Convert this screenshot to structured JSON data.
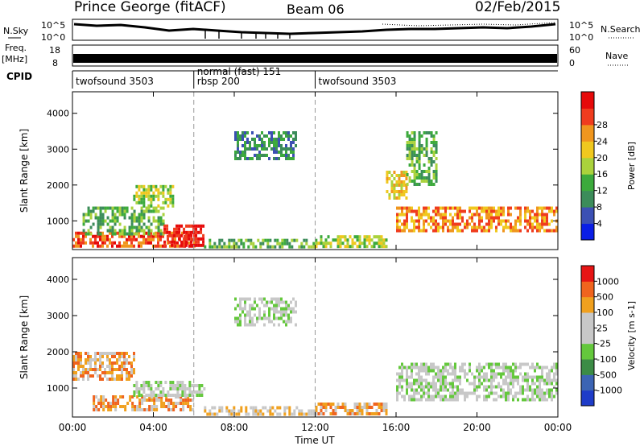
{
  "header": {
    "station": "Prince George (fitACF)",
    "beam": "Beam 06",
    "date": "02/Feb/2015"
  },
  "top_panels": {
    "nsky_label": "N.Sky",
    "nsky_ticks": [
      "10^5",
      "10^0"
    ],
    "nsearch_label": "N.Search",
    "freq_label_1": "Freq.",
    "freq_label_2": "[MHz]",
    "freq_ticks": [
      "18",
      "8"
    ],
    "nave_ticks": [
      "60",
      "0"
    ],
    "nave_label": "Nave",
    "cpid_label": "CPID",
    "cpid_segments": [
      {
        "start_h": 0,
        "end_h": 6,
        "text": "twofsound 3503"
      },
      {
        "start_h": 6,
        "end_h": 12,
        "text": "normal (fast) 151",
        "text2": "rbsp 200"
      },
      {
        "start_h": 12,
        "end_h": 24,
        "text": "twofsound 3503"
      }
    ]
  },
  "chart_data": [
    {
      "type": "heatmap",
      "name": "power",
      "xlabel": "",
      "ylabel": "Slant Range [km]",
      "xlim": [
        0,
        24
      ],
      "ylim": [
        200,
        4600
      ],
      "y_ticks": [
        "1000",
        "2000",
        "3000",
        "4000"
      ],
      "colorbar": {
        "label": "Power [dB]",
        "ticks": [
          "4",
          "8",
          "12",
          "16",
          "20",
          "24",
          "28"
        ],
        "colors": [
          "#0a1ee6",
          "#3c50b4",
          "#3c8c5a",
          "#3caa3c",
          "#aad23c",
          "#f0c81e",
          "#f0961e",
          "#f03c1e",
          "#e60a0a"
        ]
      },
      "regions": [
        {
          "x0": 0.0,
          "x1": 6.0,
          "y0": 300,
          "y1": 700,
          "level": 7
        },
        {
          "x0": 0.5,
          "x1": 4.5,
          "y0": 600,
          "y1": 1400,
          "level": 3
        },
        {
          "x0": 3.0,
          "x1": 5.0,
          "y0": 1400,
          "y1": 2000,
          "level": 4
        },
        {
          "x0": 4.5,
          "x1": 6.5,
          "y0": 350,
          "y1": 900,
          "level": 8
        },
        {
          "x0": 8.0,
          "x1": 11.0,
          "y0": 2700,
          "y1": 3500,
          "level": 2
        },
        {
          "x0": 6.5,
          "x1": 12.0,
          "y0": 300,
          "y1": 500,
          "level": 3
        },
        {
          "x0": 12.0,
          "x1": 15.5,
          "y0": 300,
          "y1": 600,
          "level": 4
        },
        {
          "x0": 15.5,
          "x1": 16.5,
          "y0": 1600,
          "y1": 2400,
          "level": 5
        },
        {
          "x0": 16.0,
          "x1": 24.0,
          "y0": 700,
          "y1": 1400,
          "level": 6
        },
        {
          "x0": 16.5,
          "x1": 18.0,
          "y0": 2000,
          "y1": 3500,
          "level": 3
        }
      ]
    },
    {
      "type": "heatmap",
      "name": "velocity",
      "xlabel": "Time UT",
      "ylabel": "Slant Range [km]",
      "xlim": [
        0,
        24
      ],
      "ylim": [
        200,
        4600
      ],
      "x_ticks": [
        "00:00",
        "04:00",
        "08:00",
        "12:00",
        "16:00",
        "20:00",
        "00:00"
      ],
      "y_ticks": [
        "1000",
        "2000",
        "3000",
        "4000"
      ],
      "colorbar": {
        "label": "Velocity [m s-1]",
        "ticks": [
          "1000",
          "500",
          "100",
          "25",
          "-25",
          "-100",
          "-500",
          "-1000"
        ],
        "colors": [
          "#1e3cc8",
          "#3c64b4",
          "#3c8c46",
          "#64c83c",
          "#c8c8c8",
          "#c8c8c8",
          "#f0a01e",
          "#f0641e",
          "#e61414"
        ]
      },
      "regions": [
        {
          "x0": 0.0,
          "x1": 3.0,
          "y0": 1200,
          "y1": 2000,
          "level": 6
        },
        {
          "x0": 1.0,
          "x1": 6.0,
          "y0": 400,
          "y1": 800,
          "level": 6
        },
        {
          "x0": 3.0,
          "x1": 6.5,
          "y0": 800,
          "y1": 1200,
          "level": 4
        },
        {
          "x0": 8.0,
          "x1": 11.0,
          "y0": 2700,
          "y1": 3500,
          "level": 4
        },
        {
          "x0": 6.5,
          "x1": 12.0,
          "y0": 300,
          "y1": 500,
          "level": 5
        },
        {
          "x0": 12.0,
          "x1": 15.5,
          "y0": 300,
          "y1": 600,
          "level": 6
        },
        {
          "x0": 16.0,
          "x1": 24.0,
          "y0": 700,
          "y1": 1700,
          "level": 4
        }
      ]
    }
  ]
}
